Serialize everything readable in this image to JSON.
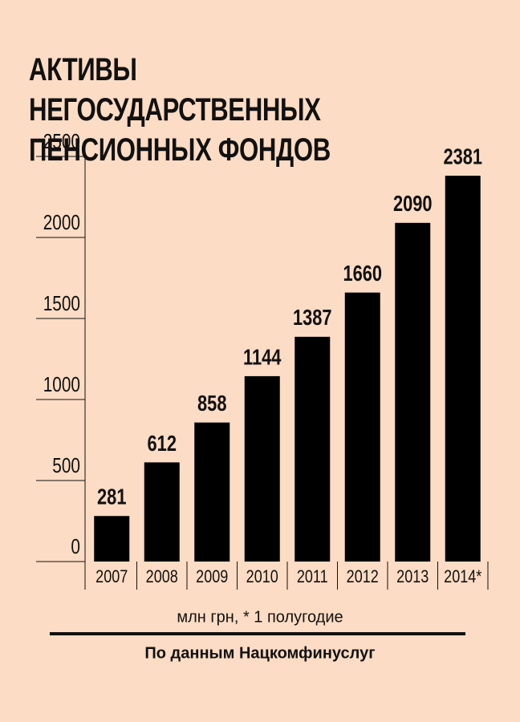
{
  "chart_data": {
    "type": "bar",
    "title": "АКТИВЫ НЕГОСУДАРСТВЕННЫХ ПЕНСИОННЫХ ФОНДОВ",
    "categories": [
      "2007",
      "2008",
      "2009",
      "2010",
      "2011",
      "2012",
      "2013",
      "2014*"
    ],
    "values": [
      281,
      612,
      858,
      1144,
      1387,
      1660,
      2090,
      2381
    ],
    "color": "#000000",
    "ylim": [
      0,
      2500
    ],
    "yticks": [
      0,
      500,
      1000,
      1500,
      2000,
      2500
    ],
    "note": "млн грн, * 1 полугодие",
    "source": "По данным Нацкомфинуслуг"
  }
}
